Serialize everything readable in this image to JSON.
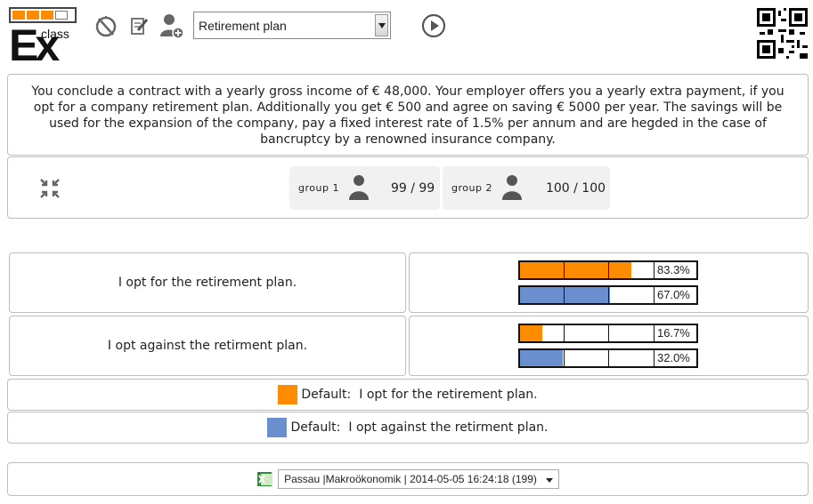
{
  "header": {
    "logo_text": "Ex",
    "logo_sub": "class",
    "treatment_select": {
      "value": "Retirement plan"
    },
    "icons": [
      "no-timer-icon",
      "clipboard-edit-icon",
      "add-user-icon",
      "play-icon",
      "qr-code-icon"
    ]
  },
  "description": "You conclude a contract with a yearly gross income of € 48,000. Your employer offers you a yearly extra payment, if you opt for a company retirement plan. Additionally you get € 500 and agree on saving € 5000 per year. The savings will be used for the expansion of the company, pay a fixed interest rate of 1.5% per annum and are hegded in the case of bancruptcy by a renowned insurance company.",
  "groups": [
    {
      "label": "group 1",
      "count": "99 / 99"
    },
    {
      "label": "group 2",
      "count": "100 / 100"
    }
  ],
  "answers": [
    {
      "text": "I opt for the retirement plan.",
      "group1": {
        "percent": 83.3,
        "label": "83.3%"
      },
      "group2": {
        "percent": 67.0,
        "label": "67.0%"
      }
    },
    {
      "text": "I opt against the retirment plan.",
      "group1": {
        "percent": 16.7,
        "label": "16.7%"
      },
      "group2": {
        "percent": 32.0,
        "label": "32.0%"
      }
    }
  ],
  "legend": [
    {
      "prefix": "Default:",
      "text": "I opt for the retirement plan.",
      "color": "#ff8c00"
    },
    {
      "prefix": "Default:",
      "text": "I opt against the retirment plan.",
      "color": "#6a8fcf"
    }
  ],
  "colors": {
    "group1": "#ff8c00",
    "group2": "#6a8fcf"
  },
  "footer": {
    "session_select": "Passau |Makroökonomik | 2014-05-05 16:24:18 (199)",
    "icon": "excel-export-icon"
  }
}
